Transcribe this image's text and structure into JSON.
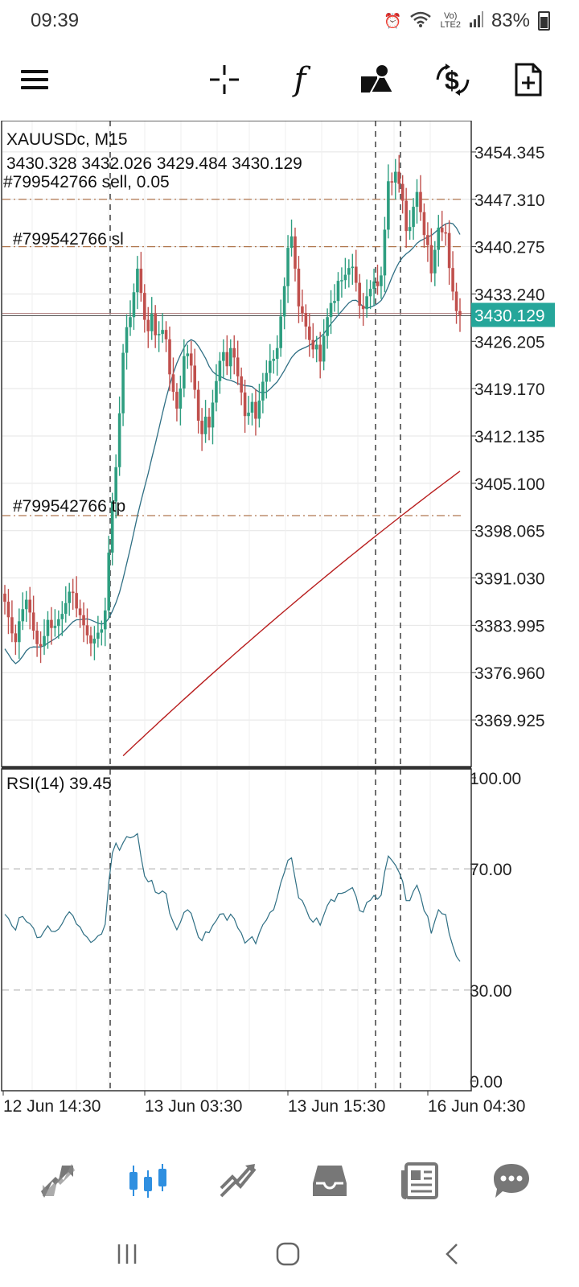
{
  "status_bar": {
    "time": "09:39",
    "battery": "83%",
    "network": "LTE2",
    "volte": "Vo)"
  },
  "toolbar": {
    "buttons": [
      {
        "icon": "menu-icon"
      },
      {
        "icon": "crosshair-icon"
      },
      {
        "icon": "function-icon",
        "glyph": "f"
      },
      {
        "icon": "objects-icon"
      },
      {
        "icon": "trade-icon"
      },
      {
        "icon": "new-order-icon"
      }
    ]
  },
  "chart_data": {
    "type": "candlestick",
    "symbol": "XAUUSDc, M15",
    "ohlc_label": "3430.328 3432.026 3429.484 3430.129",
    "current_price": 3430.129,
    "current_price_label": "3430.129",
    "ylim": [
      3363.0,
      3459.0
    ],
    "y_ticks": [
      "3454.345",
      "3447.310",
      "3440.275",
      "3433.240",
      "3426.205",
      "3419.170",
      "3412.135",
      "3405.100",
      "3398.065",
      "3391.030",
      "3383.995",
      "3376.960",
      "3369.925"
    ],
    "x_ticks": [
      "12 Jun 14:30",
      "13 Jun 03:30",
      "13 Jun 15:30",
      "16 Jun 04:30"
    ],
    "trade_lines": [
      {
        "label": "#799542766 sell, 0.05",
        "price": 3447.31
      },
      {
        "label": "#799542766 sl",
        "price": 3440.275
      },
      {
        "label": "#799542766 tp",
        "price": 3400.3
      }
    ],
    "closes": [
      3387.5,
      3385.2,
      3382.8,
      3381.5,
      3384.6,
      3386.4,
      3387.8,
      3385.9,
      3383.2,
      3381.2,
      3380.9,
      3382.4,
      3384.8,
      3383.6,
      3383.9,
      3384.9,
      3385.7,
      3387.3,
      3389.0,
      3388.8,
      3386.5,
      3385.5,
      3384.0,
      3382.5,
      3381.3,
      3382.0,
      3382.9,
      3383.4,
      3386.2,
      3394.8,
      3402.4,
      3407.5,
      3415.5,
      3424.5,
      3428.3,
      3429.8,
      3433.5,
      3437.0,
      3433.4,
      3429.4,
      3427.7,
      3430.3,
      3427.1,
      3427.3,
      3427.9,
      3426.5,
      3421.3,
      3418.7,
      3416.2,
      3419.2,
      3424.0,
      3424.4,
      3422.6,
      3419.0,
      3414.4,
      3412.4,
      3415.0,
      3413.4,
      3417.1,
      3420.3,
      3423.3,
      3424.6,
      3422.5,
      3425.2,
      3423.8,
      3421.0,
      3418.6,
      3415.1,
      3415.6,
      3417.2,
      3414.7,
      3417.4,
      3420.2,
      3421.5,
      3423.3,
      3423.6,
      3425.2,
      3429.9,
      3434.4,
      3440.1,
      3441.8,
      3437.0,
      3431.4,
      3430.4,
      3428.4,
      3426.4,
      3425.0,
      3425.7,
      3423.2,
      3427.0,
      3429.8,
      3431.9,
      3432.2,
      3435.2,
      3435.3,
      3436.1,
      3437.1,
      3437.3,
      3434.9,
      3431.5,
      3431.0,
      3432.9,
      3434.0,
      3435.1,
      3434.4,
      3436.0,
      3442.8,
      3450.0,
      3449.8,
      3451.4,
      3449.6,
      3447.1,
      3442.6,
      3443.2,
      3446.2,
      3448.4,
      3445.4,
      3442.0,
      3440.5,
      3436.3,
      3439.8,
      3443.1,
      3442.4,
      3442.3,
      3437.1,
      3433.6,
      3430.7,
      3430.1
    ],
    "ma_fast_label": "teal moving average",
    "ma_slow_label": "red moving average",
    "series_colors": {
      "bull": "#2e9e80",
      "bear": "#c0504d",
      "ma_fast": "#2f6f84",
      "ma_slow": "#b81e1e",
      "price_tag": "#26a69a"
    },
    "rsi": {
      "label": "RSI(14) 39.45",
      "ylim": [
        0,
        100
      ],
      "y_ticks": [
        "100.00",
        "70.00",
        "30.00",
        "0.00"
      ],
      "levels": [
        70,
        30
      ],
      "values": [
        55.0,
        53.7,
        51.2,
        49.8,
        53.9,
        54.3,
        52.6,
        51.9,
        50.4,
        47.3,
        47.5,
        49.5,
        51.2,
        49.4,
        49.3,
        50.1,
        51.9,
        54.3,
        55.8,
        54.5,
        51.8,
        50.8,
        48.5,
        47.4,
        45.7,
        46.5,
        47.9,
        48.5,
        51.7,
        65.1,
        75.2,
        78.5,
        76.1,
        78.6,
        80.6,
        80.2,
        80.6,
        81.6,
        73.9,
        67.6,
        65.7,
        66.2,
        62.3,
        61.8,
        62.7,
        61.8,
        55.3,
        52.4,
        49.9,
        52.4,
        55.6,
        56.5,
        55.3,
        51.4,
        47.5,
        46.3,
        49.2,
        48.9,
        51.3,
        52.9,
        55.0,
        55.2,
        53.0,
        55.0,
        53.6,
        50.5,
        48.8,
        45.5,
        46.6,
        47.6,
        45.3,
        48.8,
        51.6,
        53.1,
        55.6,
        56.5,
        60.5,
        65.4,
        68.8,
        72.8,
        73.6,
        66.8,
        60.4,
        59.5,
        56.8,
        53.8,
        52.4,
        53.8,
        51.4,
        54.7,
        57.9,
        59.9,
        59.2,
        61.9,
        61.9,
        62.3,
        63.1,
        63.8,
        60.9,
        56.2,
        55.7,
        58.9,
        59.6,
        61.2,
        60.0,
        61.3,
        69.0,
        74.2,
        72.8,
        71.2,
        68.9,
        65.9,
        59.5,
        59.5,
        62.6,
        64.6,
        61.1,
        56.2,
        54.3,
        48.7,
        52.8,
        56.5,
        55.2,
        54.9,
        48.6,
        44.6,
        41.1,
        39.45
      ]
    }
  },
  "bottom_nav": {
    "items": [
      {
        "icon": "quotes-icon",
        "active": false
      },
      {
        "icon": "chart-icon",
        "active": true
      },
      {
        "icon": "trade-icon",
        "active": false
      },
      {
        "icon": "history-icon",
        "active": false
      },
      {
        "icon": "news-icon",
        "active": false
      },
      {
        "icon": "messages-icon",
        "active": false
      }
    ],
    "active_color": "#2f8fe0",
    "inactive_color": "#777777"
  }
}
